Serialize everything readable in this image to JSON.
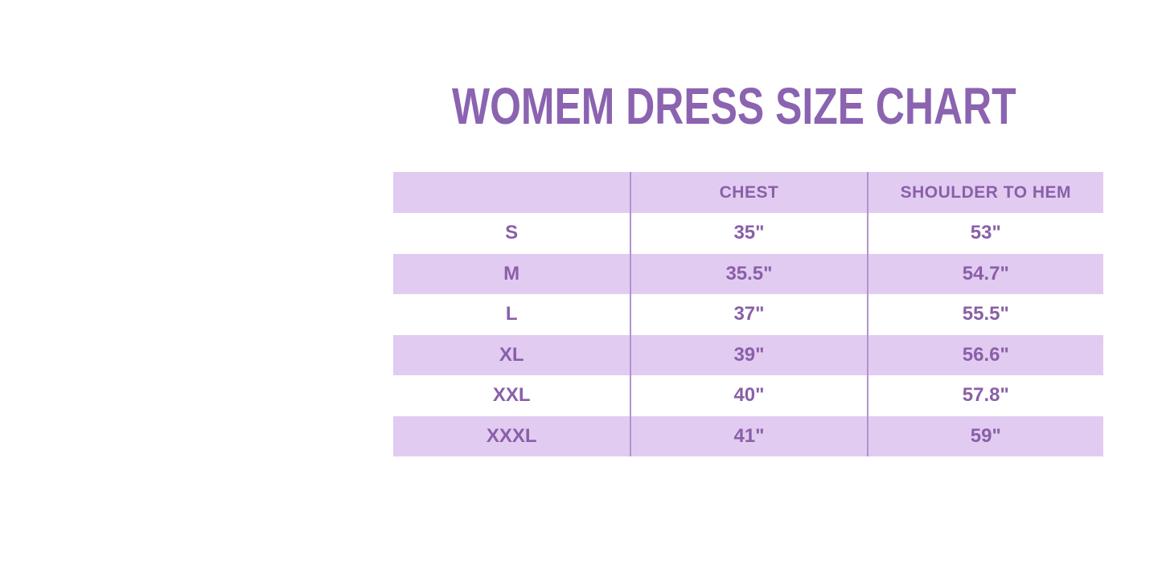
{
  "chart_data": {
    "type": "table",
    "title": "WOMEM DRESS SIZE CHART",
    "columns": [
      "",
      "CHEST",
      "SHOULDER TO HEM"
    ],
    "rows": [
      [
        "S",
        "35\"",
        "53\""
      ],
      [
        "M",
        "35.5\"",
        "54.7\""
      ],
      [
        "L",
        "37\"",
        "55.5\""
      ],
      [
        "XL",
        "39\"",
        "56.6\""
      ],
      [
        "XXL",
        "40\"",
        "57.8\""
      ],
      [
        "XXXL",
        "41\"",
        "59\""
      ]
    ],
    "layout": {
      "striped": true,
      "stripe_rows": [
        "header",
        "M",
        "XL",
        "XXXL"
      ],
      "stripe_color": "#E2CBF1",
      "text_color": "#8A5FA8",
      "title_color": "#8B63B0",
      "divider_color": "#B093CF",
      "background": "#FFFFFF",
      "outer_border": false
    }
  }
}
